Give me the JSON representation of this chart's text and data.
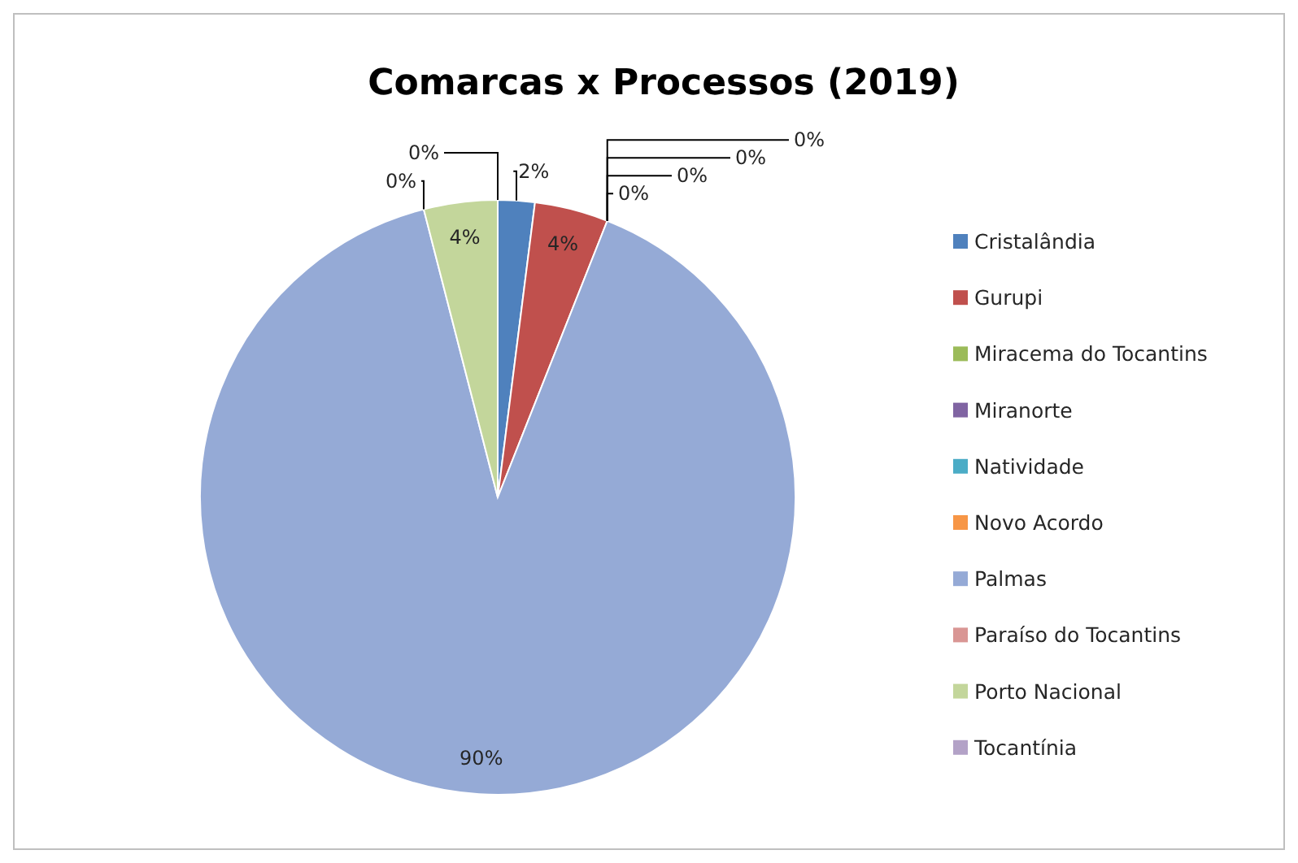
{
  "chart_data": {
    "type": "pie",
    "title": "Comarcas x Processos (2019)",
    "categories": [
      "Cristalândia",
      "Gurupi",
      "Miracema do Tocantins",
      "Miranorte",
      "Natividade",
      "Novo Acordo",
      "Palmas",
      "Paraíso do Tocantins",
      "Porto Nacional",
      "Tocantínia"
    ],
    "values": [
      2,
      4,
      0,
      0,
      0,
      0,
      90,
      0,
      4,
      0
    ],
    "colors": [
      "#4f81bd",
      "#c0504d",
      "#9bbb59",
      "#8064a2",
      "#4bacc6",
      "#f79646",
      "#95aad6",
      "#d99694",
      "#c3d69b",
      "#b3a2c7"
    ],
    "value_labels": [
      "2%",
      "4%",
      "0%",
      "0%",
      "0%",
      "0%",
      "90%",
      "0%",
      "4%",
      "0%"
    ],
    "legend": "right"
  }
}
